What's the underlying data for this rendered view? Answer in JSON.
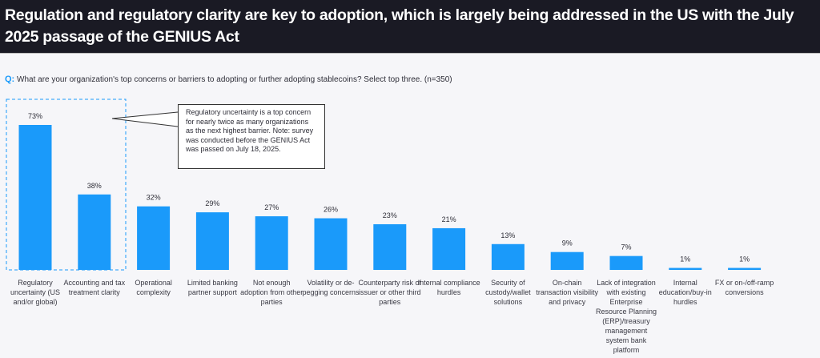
{
  "header": {
    "title": "Regulation and regulatory clarity are key to adoption, which is largely being addressed in the US with the July 2025 passage of the GENIUS Act"
  },
  "question": {
    "prefix": "Q:",
    "text": "What are your organization's top concerns or barriers to adopting or further adopting stablecoins? Select top three. (n=350)"
  },
  "callout": {
    "text": "Regulatory uncertainty is a top concern for nearly twice as many organizations as the next highest barrier. Note: survey was conducted before the GENIUS Act was passed on July 18, 2025."
  },
  "colors": {
    "bar": "#1a9afa",
    "highlight_border": "#1a9afa",
    "header_bg": "#1a1a24"
  },
  "chart_data": {
    "type": "bar",
    "categories": [
      "Regulatory uncertainty (US and/or global)",
      "Accounting and tax treatment clarity",
      "Operational complexity",
      "Limited banking partner support",
      "Not enough adoption from other parties",
      "Volatility or de-pegging concerns",
      "Counterparty risk of issuer or other third parties",
      "Internal compliance hurdles",
      "Security of custody/wallet solutions",
      "On-chain transaction visibility and privacy",
      "Lack of integration with existing Enterprise Resource Planning (ERP)/treasury management system bank platform",
      "Internal education/buy-in hurdles",
      "FX or on-/off-ramp conversions"
    ],
    "values": [
      73,
      38,
      32,
      29,
      27,
      26,
      23,
      21,
      13,
      9,
      7,
      1,
      1
    ],
    "data_labels": [
      "73%",
      "38%",
      "32%",
      "29%",
      "27%",
      "26%",
      "23%",
      "21%",
      "13%",
      "9%",
      "7%",
      "1%",
      "1%"
    ],
    "unit": "%",
    "ylim": [
      0,
      73
    ],
    "grid": false,
    "highlighted_category": "Regulatory uncertainty (US and/or global)"
  }
}
